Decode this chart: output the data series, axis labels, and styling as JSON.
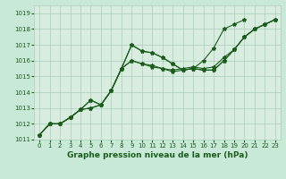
{
  "background_color": "#c8e8d8",
  "plot_bg_color": "#d8ede0",
  "grid_color": "#aaccb8",
  "line_color": "#1a5c1a",
  "xlabel": "Graphe pression niveau de la mer (hPa)",
  "xlim": [
    -0.5,
    23.5
  ],
  "ylim": [
    1011,
    1019.5
  ],
  "yticks": [
    1011,
    1012,
    1013,
    1014,
    1015,
    1016,
    1017,
    1018,
    1019
  ],
  "xticks": [
    0,
    1,
    2,
    3,
    4,
    5,
    6,
    7,
    8,
    9,
    10,
    11,
    12,
    13,
    14,
    15,
    16,
    17,
    18,
    19,
    20,
    21,
    22,
    23
  ],
  "series": [
    [
      1011.3,
      1012.0,
      1012.0,
      1012.4,
      1012.9,
      1013.5,
      1013.2,
      1014.1,
      1015.5,
      1017.0,
      1016.6,
      1016.5,
      1016.2,
      1015.8,
      1015.4,
      1015.5,
      1015.4,
      1015.4,
      1016.0,
      1016.7,
      1017.5,
      1018.0,
      1018.3,
      1018.6
    ],
    [
      1011.3,
      1012.0,
      1012.0,
      1012.4,
      1012.9,
      1013.0,
      1013.2,
      1014.1,
      1015.5,
      1016.0,
      1015.8,
      1015.6,
      1015.5,
      1015.3,
      1015.4,
      1015.5,
      1015.4,
      1015.4,
      1016.0,
      1016.7,
      1017.5,
      1018.0,
      1018.3,
      1018.6
    ],
    [
      1011.3,
      1012.0,
      1012.0,
      1012.4,
      1012.9,
      1013.0,
      1013.2,
      1014.1,
      1015.5,
      1016.0,
      1015.8,
      1015.7,
      1015.5,
      1015.4,
      1015.5,
      1015.6,
      1015.5,
      1015.6,
      1016.2,
      1016.7,
      1017.5,
      1018.0,
      1018.3,
      1018.6
    ],
    [
      1011.3,
      1012.0,
      1012.0,
      1012.4,
      1012.9,
      1013.5,
      1013.2,
      1014.1,
      1015.5,
      1017.0,
      1016.6,
      1016.5,
      1016.2,
      1015.8,
      1015.4,
      1015.5,
      1016.0,
      1016.8,
      1018.0,
      1018.3,
      1018.6,
      null,
      null,
      null
    ]
  ],
  "marker": "*",
  "markersize": 3,
  "linewidth": 0.8,
  "tick_fontsize": 5,
  "xlabel_fontsize": 6.5
}
